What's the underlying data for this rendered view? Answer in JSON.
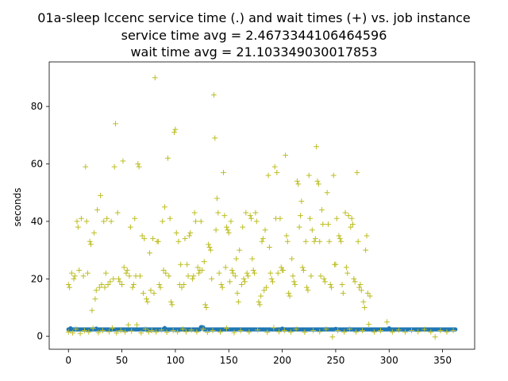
{
  "chart_data": {
    "type": "scatter",
    "title_lines": [
      "01a-sleep lccenc service time (.) and wait times (+) vs. job instance",
      "service time avg = 2.4673344106464596",
      "wait time avg = 21.103349030017853"
    ],
    "xlabel": "",
    "ylabel": "seconds",
    "xlim": [
      -18,
      380
    ],
    "ylim": [
      -4.5,
      95.5
    ],
    "xticks": [
      0,
      50,
      100,
      150,
      200,
      250,
      300,
      350
    ],
    "yticks": [
      0,
      20,
      40,
      60,
      80
    ],
    "grid": false,
    "legend": "none",
    "colors": {
      "service": "#1f77b4",
      "wait": "#bcbd22",
      "axes": "#000000"
    },
    "series": [
      {
        "kind": "service",
        "marker": "dot",
        "x_start": 0,
        "x_end": 362,
        "baseline": 2.4,
        "bumps": [
          [
            2,
            2.8
          ],
          [
            26,
            2.7
          ],
          [
            90,
            2.9
          ],
          [
            124,
            3.2
          ],
          [
            125,
            3.2
          ],
          [
            126,
            3.1
          ],
          [
            200,
            2.7
          ],
          [
            250,
            2.6
          ],
          [
            300,
            2.8
          ]
        ]
      },
      {
        "kind": "wait",
        "marker": "plus",
        "points": [
          [
            0,
            18
          ],
          [
            1,
            17
          ],
          [
            3,
            22
          ],
          [
            5,
            20
          ],
          [
            6,
            21
          ],
          [
            8,
            40
          ],
          [
            9,
            38
          ],
          [
            10,
            23
          ],
          [
            12,
            41
          ],
          [
            14,
            21
          ],
          [
            16,
            59
          ],
          [
            17,
            40
          ],
          [
            18,
            22
          ],
          [
            20,
            33
          ],
          [
            21,
            32
          ],
          [
            22,
            9
          ],
          [
            24,
            36
          ],
          [
            25,
            13
          ],
          [
            26,
            16
          ],
          [
            27,
            44
          ],
          [
            29,
            17
          ],
          [
            30,
            49
          ],
          [
            31,
            18
          ],
          [
            33,
            40
          ],
          [
            34,
            17
          ],
          [
            35,
            22
          ],
          [
            36,
            41
          ],
          [
            37,
            18
          ],
          [
            39,
            19
          ],
          [
            40,
            40
          ],
          [
            42,
            20
          ],
          [
            43,
            59
          ],
          [
            44,
            74
          ],
          [
            46,
            43
          ],
          [
            47,
            20
          ],
          [
            48,
            19
          ],
          [
            50,
            18
          ],
          [
            51,
            61
          ],
          [
            52,
            24
          ],
          [
            54,
            22
          ],
          [
            55,
            23
          ],
          [
            57,
            21
          ],
          [
            58,
            38
          ],
          [
            60,
            17
          ],
          [
            61,
            18
          ],
          [
            62,
            41
          ],
          [
            63,
            21
          ],
          [
            65,
            60
          ],
          [
            66,
            59
          ],
          [
            67,
            21
          ],
          [
            69,
            35
          ],
          [
            70,
            15
          ],
          [
            71,
            34
          ],
          [
            73,
            13
          ],
          [
            74,
            12
          ],
          [
            76,
            29
          ],
          [
            77,
            16
          ],
          [
            79,
            34
          ],
          [
            80,
            15
          ],
          [
            81,
            90
          ],
          [
            83,
            33
          ],
          [
            84,
            33
          ],
          [
            85,
            18
          ],
          [
            86,
            17
          ],
          [
            88,
            40
          ],
          [
            89,
            23
          ],
          [
            90,
            45
          ],
          [
            91,
            22
          ],
          [
            93,
            62
          ],
          [
            94,
            21
          ],
          [
            95,
            41
          ],
          [
            96,
            12
          ],
          [
            97,
            11
          ],
          [
            99,
            71
          ],
          [
            100,
            72
          ],
          [
            101,
            36
          ],
          [
            103,
            33
          ],
          [
            104,
            18
          ],
          [
            105,
            25
          ],
          [
            106,
            17
          ],
          [
            108,
            18
          ],
          [
            109,
            34
          ],
          [
            111,
            25
          ],
          [
            112,
            21
          ],
          [
            113,
            35
          ],
          [
            114,
            36
          ],
          [
            116,
            20
          ],
          [
            117,
            21
          ],
          [
            118,
            43
          ],
          [
            119,
            40
          ],
          [
            121,
            24
          ],
          [
            122,
            22
          ],
          [
            123,
            23
          ],
          [
            124,
            40
          ],
          [
            125,
            23
          ],
          [
            127,
            26
          ],
          [
            128,
            11
          ],
          [
            129,
            10
          ],
          [
            131,
            32
          ],
          [
            132,
            31
          ],
          [
            133,
            30
          ],
          [
            134,
            20
          ],
          [
            136,
            84
          ],
          [
            137,
            69
          ],
          [
            138,
            37
          ],
          [
            139,
            48
          ],
          [
            140,
            43
          ],
          [
            141,
            22
          ],
          [
            143,
            18
          ],
          [
            144,
            17
          ],
          [
            145,
            57
          ],
          [
            146,
            42
          ],
          [
            147,
            24
          ],
          [
            148,
            38
          ],
          [
            149,
            37
          ],
          [
            150,
            36
          ],
          [
            151,
            19
          ],
          [
            152,
            40
          ],
          [
            153,
            23
          ],
          [
            154,
            22
          ],
          [
            156,
            21
          ],
          [
            157,
            27
          ],
          [
            158,
            15
          ],
          [
            159,
            12
          ],
          [
            160,
            30
          ],
          [
            162,
            18
          ],
          [
            163,
            38
          ],
          [
            164,
            20
          ],
          [
            165,
            19
          ],
          [
            166,
            43
          ],
          [
            167,
            22
          ],
          [
            168,
            21
          ],
          [
            170,
            42
          ],
          [
            171,
            41
          ],
          [
            172,
            27
          ],
          [
            173,
            23
          ],
          [
            174,
            22
          ],
          [
            175,
            43
          ],
          [
            176,
            40
          ],
          [
            178,
            12
          ],
          [
            179,
            11
          ],
          [
            180,
            14
          ],
          [
            181,
            33
          ],
          [
            182,
            34
          ],
          [
            183,
            16
          ],
          [
            184,
            37
          ],
          [
            185,
            17
          ],
          [
            187,
            56
          ],
          [
            188,
            31
          ],
          [
            189,
            22
          ],
          [
            190,
            20
          ],
          [
            191,
            19
          ],
          [
            193,
            59
          ],
          [
            194,
            41
          ],
          [
            195,
            57
          ],
          [
            196,
            22
          ],
          [
            198,
            41
          ],
          [
            199,
            24
          ],
          [
            200,
            23
          ],
          [
            201,
            23
          ],
          [
            203,
            63
          ],
          [
            204,
            35
          ],
          [
            205,
            33
          ],
          [
            206,
            15
          ],
          [
            207,
            14
          ],
          [
            209,
            27
          ],
          [
            210,
            21
          ],
          [
            211,
            19
          ],
          [
            212,
            18
          ],
          [
            214,
            54
          ],
          [
            215,
            53
          ],
          [
            216,
            38
          ],
          [
            217,
            42
          ],
          [
            218,
            47
          ],
          [
            219,
            24
          ],
          [
            220,
            23
          ],
          [
            222,
            33
          ],
          [
            223,
            17
          ],
          [
            224,
            16
          ],
          [
            225,
            56
          ],
          [
            226,
            41
          ],
          [
            227,
            21
          ],
          [
            228,
            37
          ],
          [
            230,
            33
          ],
          [
            231,
            34
          ],
          [
            232,
            66
          ],
          [
            233,
            54
          ],
          [
            234,
            53
          ],
          [
            235,
            33
          ],
          [
            236,
            21
          ],
          [
            237,
            44
          ],
          [
            238,
            39
          ],
          [
            239,
            20
          ],
          [
            240,
            19
          ],
          [
            242,
            50
          ],
          [
            243,
            39
          ],
          [
            244,
            33
          ],
          [
            245,
            18
          ],
          [
            246,
            17
          ],
          [
            248,
            56
          ],
          [
            249,
            25
          ],
          [
            250,
            25
          ],
          [
            251,
            41
          ],
          [
            253,
            35
          ],
          [
            254,
            34
          ],
          [
            255,
            33
          ],
          [
            256,
            18
          ],
          [
            257,
            15
          ],
          [
            259,
            43
          ],
          [
            260,
            24
          ],
          [
            261,
            22
          ],
          [
            262,
            42
          ],
          [
            264,
            38
          ],
          [
            265,
            41
          ],
          [
            266,
            39
          ],
          [
            267,
            20
          ],
          [
            268,
            19
          ],
          [
            270,
            57
          ],
          [
            271,
            33
          ],
          [
            272,
            17
          ],
          [
            273,
            18
          ],
          [
            274,
            16
          ],
          [
            276,
            12
          ],
          [
            277,
            10
          ],
          [
            278,
            30
          ],
          [
            279,
            35
          ],
          [
            280,
            15
          ],
          [
            282,
            14
          ]
        ],
        "low_points": [
          [
            0,
            1.5
          ],
          [
            4,
            1.2
          ],
          [
            7,
            2.5
          ],
          [
            11,
            1.0
          ],
          [
            15,
            2.0
          ],
          [
            19,
            1.5
          ],
          [
            23,
            2.8
          ],
          [
            28,
            1.3
          ],
          [
            32,
            2.0
          ],
          [
            38,
            1.6
          ],
          [
            41,
            2.9
          ],
          [
            45,
            1.2
          ],
          [
            49,
            2.0
          ],
          [
            53,
            1.5
          ],
          [
            56,
            4.0
          ],
          [
            59,
            1.8
          ],
          [
            64,
            4.0
          ],
          [
            68,
            1.2
          ],
          [
            72,
            2.5
          ],
          [
            75,
            1.5
          ],
          [
            78,
            2.0
          ],
          [
            82,
            1.5
          ],
          [
            87,
            2.2
          ],
          [
            92,
            1.4
          ],
          [
            98,
            2.0
          ],
          [
            102,
            1.5
          ],
          [
            107,
            2.5
          ],
          [
            110,
            1.6
          ],
          [
            115,
            2.2
          ],
          [
            120,
            1.5
          ],
          [
            126,
            2.5
          ],
          [
            130,
            1.4
          ],
          [
            135,
            2.0
          ],
          [
            142,
            1.5
          ],
          [
            148,
            2.8
          ],
          [
            155,
            1.3
          ],
          [
            161,
            2.0
          ],
          [
            169,
            1.5
          ],
          [
            177,
            2.2
          ],
          [
            186,
            1.4
          ],
          [
            192,
            3.0
          ],
          [
            197,
            1.6
          ],
          [
            202,
            2.0
          ],
          [
            208,
            1.5
          ],
          [
            213,
            2.5
          ],
          [
            221,
            1.4
          ],
          [
            229,
            2.0
          ],
          [
            235,
            1.6
          ],
          [
            241,
            2.5
          ],
          [
            247,
            -0.2
          ],
          [
            252,
            2.0
          ],
          [
            258,
            1.5
          ],
          [
            263,
            2.5
          ],
          [
            269,
            1.5
          ],
          [
            275,
            2.0
          ],
          [
            281,
            4.2
          ],
          [
            286,
            1.5
          ],
          [
            292,
            2.0
          ],
          [
            298,
            5.0
          ],
          [
            303,
            1.5
          ],
          [
            309,
            2.2
          ],
          [
            315,
            1.5
          ],
          [
            321,
            2.0
          ],
          [
            327,
            1.6
          ],
          [
            333,
            2.4
          ],
          [
            339,
            1.5
          ],
          [
            343,
            -0.2
          ],
          [
            348,
            2.0
          ],
          [
            354,
            1.5
          ],
          [
            360,
            2.0
          ]
        ]
      }
    ]
  }
}
